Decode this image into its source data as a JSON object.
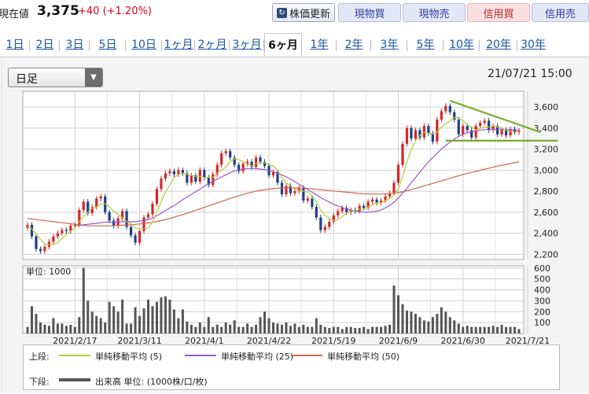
{
  "header": {
    "price_label": "現在値",
    "price_value": "3,375",
    "price_change": "+40 (+1.20%)",
    "refresh_label": "株価更新",
    "trade_buttons": [
      "現物買",
      "現物売",
      "信用買",
      "信用売"
    ]
  },
  "tabs": [
    "1日",
    "2日",
    "3日",
    "5日",
    "10日",
    "1ヶ月",
    "2ヶ月",
    "3ヶ月",
    "6ヶ月",
    "1年",
    "2年",
    "3年",
    "5年",
    "10年",
    "20年",
    "30年"
  ],
  "active_tab": "6ヶ月",
  "period_select": "日足",
  "datetime": "21/07/21 15:00",
  "volume_unit": "単位: 1000",
  "legend": {
    "upper_label": "上段:",
    "lower_label": "下段:",
    "ma5": "単純移動平均 (5)",
    "ma25": "単純移動平均 (25)",
    "ma50": "単純移動平均 (50)",
    "volume": "出来高 単位: (1000株/口/枚)"
  },
  "colors": {
    "up": "#d62728",
    "down": "#1f3f8a",
    "ma5": "#b5cc3a",
    "ma25": "#9b55d0",
    "ma50": "#d0664a",
    "volume": "#555555",
    "trendline": "#7aac2c"
  },
  "chart_data": [
    {
      "type": "candlestick",
      "title": "",
      "y_ticks": [
        "3,600",
        "3,400",
        "3,200",
        "3,000",
        "2,800",
        "2,600",
        "2,400",
        "2,200"
      ],
      "y_tick_values": [
        3600,
        3400,
        3200,
        3000,
        2800,
        2600,
        2400,
        2200
      ],
      "ylim": [
        2150,
        3750
      ],
      "x_tick_labels": [
        "2021/2/17",
        "2021/3/11",
        "2021/4/1",
        "2021/4/22",
        "2021/5/19",
        "2021/6/9",
        "2021/6/30",
        "2021/7/21"
      ],
      "x_tick_index": [
        11,
        26,
        41,
        56,
        71,
        86,
        101,
        116
      ],
      "grid": true,
      "closes": [
        2480,
        2370,
        2250,
        2230,
        2270,
        2320,
        2370,
        2400,
        2430,
        2420,
        2470,
        2480,
        2620,
        2700,
        2590,
        2650,
        2730,
        2750,
        2600,
        2520,
        2470,
        2540,
        2610,
        2460,
        2380,
        2310,
        2420,
        2550,
        2580,
        2680,
        2820,
        2920,
        2970,
        2990,
        2960,
        3000,
        2970,
        2880,
        2950,
        2890,
        3000,
        2930,
        2860,
        2960,
        3050,
        3160,
        3180,
        3120,
        3050,
        2990,
        3060,
        3080,
        3030,
        3120,
        3080,
        3040,
        2950,
        2980,
        2880,
        2770,
        2850,
        2780,
        2800,
        2830,
        2710,
        2730,
        2650,
        2550,
        2430,
        2460,
        2510,
        2570,
        2610,
        2640,
        2600,
        2620,
        2610,
        2660,
        2640,
        2700,
        2720,
        2690,
        2710,
        2750,
        2780,
        2880,
        3050,
        3250,
        3400,
        3300,
        3380,
        3310,
        3420,
        3350,
        3270,
        3480,
        3560,
        3610,
        3550,
        3480,
        3340,
        3420,
        3380,
        3310,
        3420,
        3450,
        3470,
        3380,
        3420,
        3340,
        3380,
        3330,
        3390,
        3360,
        3375
      ],
      "ma5": [
        2460,
        2440,
        2390,
        2340,
        2300,
        2290,
        2290,
        2310,
        2350,
        2390,
        2420,
        2450,
        2510,
        2560,
        2600,
        2640,
        2650,
        2680,
        2680,
        2650,
        2610,
        2580,
        2550,
        2510,
        2490,
        2450,
        2440,
        2440,
        2450,
        2510,
        2600,
        2700,
        2790,
        2860,
        2930,
        2960,
        2970,
        2960,
        2950,
        2940,
        2940,
        2930,
        2930,
        2930,
        2970,
        3000,
        3030,
        3080,
        3110,
        3100,
        3080,
        3060,
        3040,
        3060,
        3070,
        3070,
        3050,
        3040,
        3000,
        2930,
        2880,
        2850,
        2820,
        2810,
        2800,
        2790,
        2760,
        2700,
        2620,
        2570,
        2540,
        2520,
        2530,
        2560,
        2590,
        2610,
        2610,
        2630,
        2630,
        2650,
        2670,
        2690,
        2690,
        2710,
        2730,
        2760,
        2820,
        2940,
        3080,
        3190,
        3280,
        3330,
        3360,
        3350,
        3340,
        3360,
        3410,
        3440,
        3470,
        3500,
        3500,
        3470,
        3430,
        3410,
        3380,
        3400,
        3410,
        3410,
        3420,
        3410,
        3400,
        3380,
        3370,
        3360,
        3365
      ],
      "ma25": [
        null,
        null,
        null,
        null,
        null,
        null,
        null,
        null,
        null,
        null,
        null,
        2470,
        2475,
        2480,
        2485,
        2490,
        2495,
        2500,
        2505,
        2505,
        2505,
        2505,
        2510,
        2510,
        2510,
        2510,
        2515,
        2520,
        2530,
        2545,
        2565,
        2590,
        2615,
        2640,
        2665,
        2690,
        2720,
        2745,
        2770,
        2795,
        2820,
        2845,
        2870,
        2895,
        2915,
        2935,
        2955,
        2975,
        2990,
        3000,
        3010,
        3015,
        3015,
        3015,
        3010,
        3005,
        2995,
        2985,
        2970,
        2955,
        2935,
        2915,
        2890,
        2865,
        2840,
        2815,
        2790,
        2765,
        2740,
        2715,
        2695,
        2675,
        2660,
        2645,
        2630,
        2620,
        2610,
        2605,
        2600,
        2600,
        2605,
        2610,
        2620,
        2640,
        2665,
        2695,
        2735,
        2780,
        2830,
        2880,
        2930,
        2980,
        3030,
        3080,
        3120,
        3160,
        3200,
        3235,
        3265,
        3295,
        3320,
        3340,
        3355,
        3365,
        3370,
        3380,
        3385,
        3385,
        3385,
        3385,
        3385,
        3385,
        3385,
        3380,
        3380
      ],
      "ma50": [
        2540,
        2535,
        2530,
        2525,
        2520,
        2515,
        2510,
        2505,
        2500,
        2495,
        2490,
        2485,
        2480,
        2475,
        2470,
        2470,
        2470,
        2470,
        2470,
        2470,
        2472,
        2474,
        2476,
        2478,
        2480,
        2484,
        2488,
        2492,
        2498,
        2504,
        2512,
        2520,
        2530,
        2540,
        2552,
        2564,
        2576,
        2590,
        2604,
        2618,
        2632,
        2646,
        2660,
        2674,
        2688,
        2702,
        2716,
        2730,
        2744,
        2756,
        2768,
        2780,
        2790,
        2800,
        2808,
        2814,
        2820,
        2824,
        2828,
        2830,
        2832,
        2832,
        2832,
        2830,
        2828,
        2826,
        2822,
        2818,
        2814,
        2810,
        2806,
        2802,
        2798,
        2794,
        2790,
        2786,
        2782,
        2778,
        2776,
        2774,
        2772,
        2772,
        2772,
        2774,
        2776,
        2780,
        2786,
        2794,
        2804,
        2814,
        2826,
        2838,
        2850,
        2862,
        2874,
        2886,
        2898,
        2910,
        2922,
        2934,
        2946,
        2958,
        2968,
        2978,
        2988,
        2998,
        3008,
        3018,
        3028,
        3038,
        3046,
        3054,
        3062,
        3070,
        3078
      ],
      "trendlines": [
        {
          "from": [
            98,
            3660
          ],
          "to": [
            119,
            3360
          ]
        },
        {
          "from": [
            97,
            3280
          ],
          "to": [
            123,
            3280
          ]
        }
      ]
    },
    {
      "type": "bar",
      "title": "",
      "y_ticks": [
        "600",
        "500",
        "400",
        "300",
        "200",
        "100"
      ],
      "y_tick_values": [
        600,
        500,
        400,
        300,
        200,
        100
      ],
      "ylim": [
        0,
        620
      ],
      "volume": [
        60,
        250,
        180,
        100,
        80,
        70,
        140,
        90,
        90,
        70,
        80,
        60,
        150,
        600,
        300,
        200,
        160,
        140,
        100,
        290,
        250,
        200,
        310,
        90,
        90,
        240,
        160,
        230,
        310,
        250,
        290,
        330,
        340,
        310,
        220,
        140,
        220,
        110,
        80,
        60,
        100,
        60,
        150,
        60,
        80,
        60,
        100,
        80,
        120,
        60,
        60,
        90,
        60,
        80,
        150,
        200,
        140,
        100,
        90,
        80,
        100,
        70,
        90,
        60,
        80,
        60,
        60,
        140,
        80,
        60,
        50,
        60,
        60,
        40,
        60,
        60,
        50,
        50,
        60,
        40,
        60,
        60,
        60,
        70,
        80,
        440,
        350,
        270,
        210,
        200,
        180,
        150,
        120,
        110,
        150,
        180,
        240,
        200,
        150,
        120,
        90,
        60,
        70,
        60,
        60,
        60,
        60,
        60,
        70,
        60,
        80,
        60,
        60,
        60,
        40
      ]
    }
  ]
}
